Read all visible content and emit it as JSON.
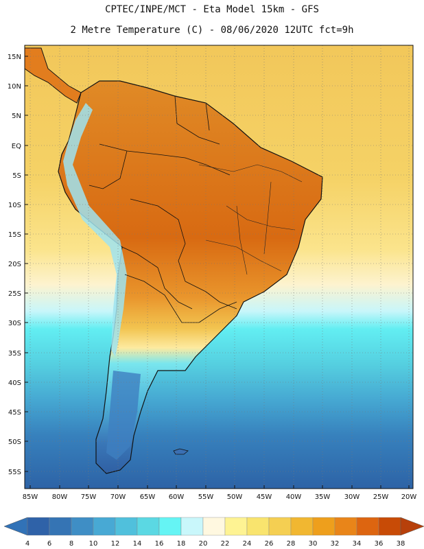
{
  "header": {
    "line1": "CPTEC/INPE/MCT  -  Eta Model 15km - GFS",
    "line2": "2 Metre Temperature (C) - 08/06/2020 12UTC fct=9h"
  },
  "map": {
    "lat_labels": [
      "15N",
      "10N",
      "5N",
      "EQ",
      "5S",
      "10S",
      "15S",
      "20S",
      "25S",
      "30S",
      "35S",
      "40S",
      "45S",
      "50S",
      "55S"
    ],
    "lon_labels": [
      "85W",
      "80W",
      "75W",
      "70W",
      "65W",
      "60W",
      "55W",
      "50W",
      "45W",
      "40W",
      "35W",
      "30W",
      "25W",
      "20W"
    ]
  },
  "colorbar": {
    "labels": [
      "4",
      "6",
      "8",
      "10",
      "12",
      "14",
      "16",
      "18",
      "20",
      "22",
      "24",
      "26",
      "28",
      "30",
      "32",
      "34",
      "36",
      "38"
    ],
    "colors": [
      "#2f62a8",
      "#3574b4",
      "#3f8ec5",
      "#48a9d4",
      "#50c0dc",
      "#5bd8e3",
      "#65f4f4",
      "#c9f7fb",
      "#fff8e0",
      "#fef393",
      "#f9e46e",
      "#f5cf52",
      "#f1b731",
      "#ee9f1c",
      "#e98519",
      "#dd6510",
      "#c84b06"
    ],
    "under_color": "#3172b7",
    "over_color": "#b7400b"
  }
}
